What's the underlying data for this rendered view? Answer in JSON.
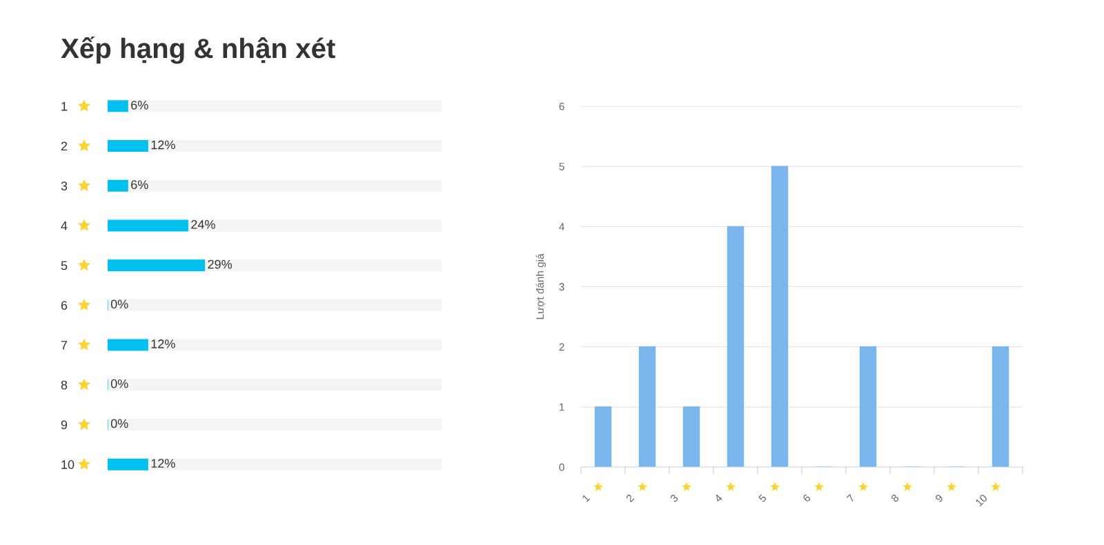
{
  "chart_data": [
    {
      "type": "bar",
      "title": "Xếp hạng & nhận xét",
      "orientation": "horizontal",
      "stacked": true,
      "categories": [
        "1",
        "2",
        "3",
        "4",
        "5",
        "6",
        "7",
        "8",
        "9",
        "10"
      ],
      "series": [
        {
          "color": "#00c0ef",
          "values": [
            6,
            12,
            6,
            24,
            29,
            0,
            12,
            0,
            0,
            12
          ],
          "value_labels": [
            "6%",
            "12%",
            "6%",
            "24%",
            "29%",
            "0%",
            "12%",
            "0%",
            "0%",
            "12%"
          ]
        },
        {
          "color": "#f4f4f4",
          "values": [
            94,
            88,
            94,
            76,
            71,
            100,
            88,
            100,
            100,
            88
          ]
        }
      ],
      "xlim": [
        0,
        100
      ],
      "tick_labels": "y"
    },
    {
      "type": "bar",
      "categories": [
        "1",
        "2",
        "3",
        "4",
        "5",
        "6",
        "7",
        "8",
        "9",
        "10"
      ],
      "values": [
        1,
        2,
        1,
        4,
        5,
        0,
        2,
        0,
        0,
        2
      ],
      "color": "#7cb5ec",
      "ylabel": "Lượt đánh giá",
      "ylim": [
        0,
        6
      ],
      "yticks": [
        0,
        1,
        2,
        3,
        4,
        5,
        6
      ],
      "grid": "y"
    }
  ]
}
